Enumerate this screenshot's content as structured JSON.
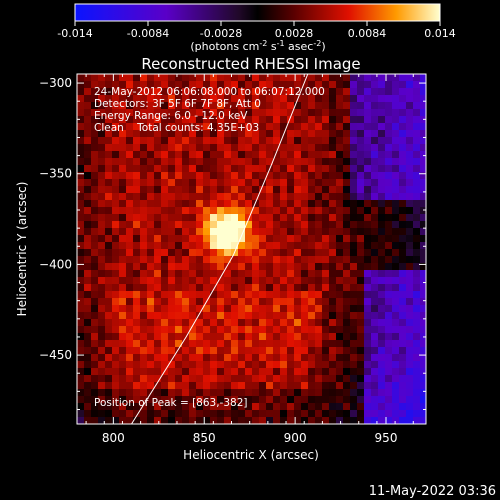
{
  "chart_data": {
    "type": "heatmap",
    "title": "Reconstructed RHESSI Image",
    "xlabel": "Heliocentric X (arcsec)",
    "ylabel": "Heliocentric Y (arcsec)",
    "xlim": [
      780,
      972
    ],
    "ylim": [
      -488,
      -295
    ],
    "xticks": [
      800,
      850,
      900,
      950
    ],
    "yticks": [
      -300,
      -350,
      -400,
      -450
    ],
    "colorbar": {
      "ticks": [
        "-0.014",
        "-0.0084",
        "-0.0028",
        "0.0028",
        "0.0084",
        "0.014"
      ],
      "label_parts": [
        "(photons cm",
        "-2",
        " s",
        "-1",
        " asec",
        "-2",
        ")"
      ],
      "range": [
        -0.014,
        0.014
      ]
    },
    "annotations": [
      "24-May-2012 06:06:08.000 to 06:07:12.000",
      "Detectors: 3F 5F 6F 7F 8F, Att 0",
      "Energy Range: 6.0 - 12.0 keV",
      "Clean    Total counts: 4.35E+03"
    ],
    "peak_label": "Position of Peak = [863,-382]",
    "peak": {
      "x": 863,
      "y": -382,
      "value": 0.014
    },
    "limb_curve": [
      [
        810,
        -488
      ],
      [
        840,
        -440
      ],
      [
        866,
        -395
      ],
      [
        887,
        -345
      ],
      [
        907,
        -295
      ]
    ]
  },
  "footer": {
    "timestamp": "11-May-2022 03:36"
  }
}
